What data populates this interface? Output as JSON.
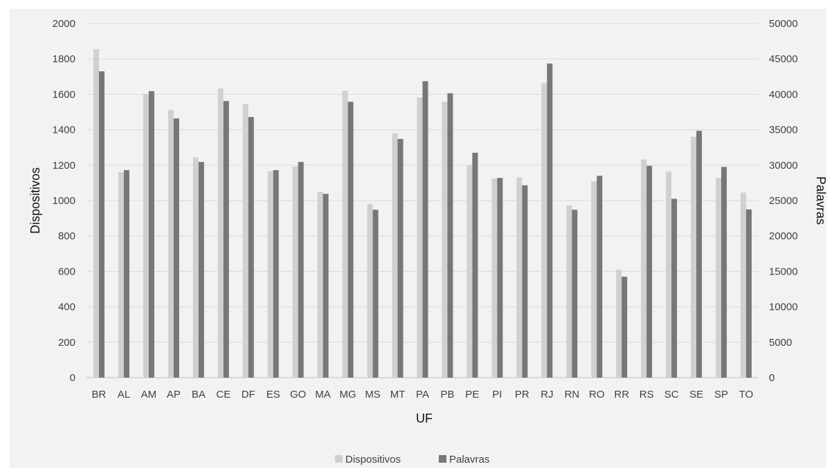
{
  "chart_data": {
    "type": "bar",
    "xlabel": "UF",
    "ylabel": "Dispositivos",
    "y2label": "Palavras",
    "ylim": [
      0,
      2000
    ],
    "y2lim": [
      0,
      50000
    ],
    "yticks": [
      0,
      200,
      400,
      600,
      800,
      1000,
      1200,
      1400,
      1600,
      1800,
      2000
    ],
    "y2ticks": [
      0,
      5000,
      10000,
      15000,
      20000,
      25000,
      30000,
      35000,
      40000,
      45000,
      50000
    ],
    "grid": true,
    "legend": "bottom",
    "categories": [
      "BR",
      "AL",
      "AM",
      "AP",
      "BA",
      "CE",
      "DF",
      "ES",
      "GO",
      "MA",
      "MG",
      "MS",
      "MT",
      "PA",
      "PB",
      "PE",
      "PI",
      "PR",
      "RJ",
      "RN",
      "RO",
      "RR",
      "RS",
      "SC",
      "SE",
      "SP",
      "TO"
    ],
    "series": [
      {
        "name": "Dispositivos",
        "axis": "left",
        "color": "#d0d0d0",
        "values": [
          1855,
          1160,
          1600,
          1512,
          1243,
          1633,
          1545,
          1167,
          1192,
          1050,
          1620,
          980,
          1380,
          1582,
          1558,
          1199,
          1125,
          1131,
          1663,
          973,
          1109,
          610,
          1232,
          1163,
          1360,
          1127,
          1045
        ]
      },
      {
        "name": "Palavras",
        "axis": "right",
        "color": "#797675",
        "values": [
          43250,
          29300,
          40450,
          36600,
          30450,
          39050,
          36800,
          29300,
          30450,
          25950,
          38950,
          23700,
          33700,
          41850,
          40150,
          31750,
          28200,
          27150,
          44350,
          23700,
          28500,
          14250,
          29900,
          25250,
          34850,
          29750,
          23750
        ]
      }
    ]
  }
}
